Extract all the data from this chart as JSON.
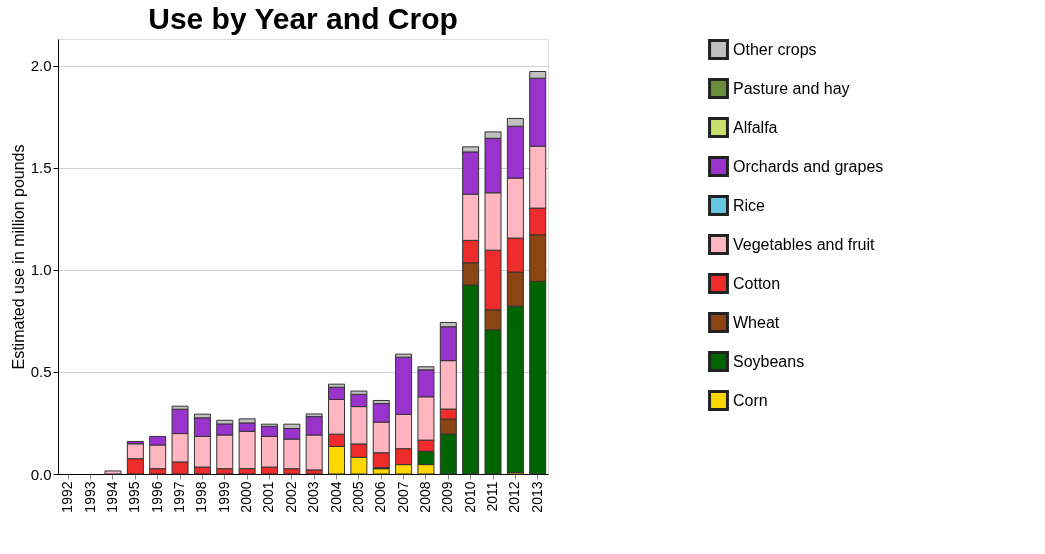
{
  "chart_data": {
    "type": "bar",
    "title": "Use by Year and Crop",
    "ylabel": "Estimated use in million pounds",
    "categories": [
      "1992",
      "1993",
      "1994",
      "1995",
      "1996",
      "1997",
      "1998",
      "1999",
      "2000",
      "2001",
      "2002",
      "2003",
      "2004",
      "2005",
      "2006",
      "2007",
      "2008",
      "2009",
      "2010",
      "2011",
      "2012",
      "2013"
    ],
    "stacked": true,
    "legend": "right",
    "grid": "y",
    "ylim": [
      0,
      2.13
    ],
    "yticks": [
      {
        "value": 0,
        "label": "0.0"
      },
      {
        "value": 0.5,
        "label": "0.5"
      },
      {
        "value": 1,
        "label": "1.0"
      },
      {
        "value": 1.5,
        "label": "1.5"
      },
      {
        "value": 2,
        "label": "2.0"
      }
    ],
    "series": [
      {
        "name": "Corn",
        "color": "#ffd700",
        "values": [
          null,
          null,
          null,
          null,
          null,
          null,
          null,
          null,
          null,
          null,
          null,
          null,
          0.135,
          0.082,
          0.026,
          0.046,
          0.046,
          null,
          null,
          null,
          0.007,
          null
        ]
      },
      {
        "name": "Soybeans",
        "color": "#006400",
        "values": [
          null,
          null,
          null,
          null,
          null,
          null,
          null,
          null,
          null,
          null,
          null,
          null,
          null,
          null,
          0.005,
          null,
          0.065,
          0.196,
          0.925,
          0.706,
          0.815,
          0.943
        ]
      },
      {
        "name": "Wheat",
        "color": "#8b4513",
        "values": [
          null,
          null,
          null,
          null,
          null,
          null,
          null,
          null,
          null,
          null,
          null,
          null,
          null,
          null,
          null,
          null,
          null,
          0.073,
          0.109,
          0.098,
          0.167,
          0.228
        ]
      },
      {
        "name": "Cotton",
        "color": "#ee2c2c",
        "values": [
          null,
          null,
          null,
          0.075,
          0.026,
          0.059,
          0.034,
          0.026,
          0.026,
          0.034,
          0.026,
          0.02,
          0.06,
          0.065,
          0.073,
          0.078,
          0.055,
          0.049,
          0.11,
          0.292,
          0.166,
          0.131
        ]
      },
      {
        "name": "Vegetables and fruit",
        "color": "#ffb6c1",
        "values": [
          null,
          null,
          0.015,
          0.073,
          0.116,
          0.139,
          0.15,
          0.165,
          0.183,
          0.15,
          0.145,
          0.171,
          0.17,
          0.183,
          0.15,
          0.168,
          0.212,
          0.237,
          0.226,
          0.281,
          0.294,
          0.303
        ]
      },
      {
        "name": "Rice",
        "color": "#66c8e0",
        "values": [
          null,
          null,
          null,
          null,
          null,
          null,
          null,
          null,
          null,
          null,
          null,
          null,
          null,
          null,
          null,
          null,
          null,
          null,
          null,
          null,
          null,
          null
        ]
      },
      {
        "name": "Orchards and grapes",
        "color": "#9933cc",
        "values": [
          null,
          null,
          null,
          0.011,
          0.042,
          0.119,
          0.091,
          0.054,
          0.041,
          0.049,
          0.052,
          0.09,
          0.06,
          0.06,
          0.091,
          0.28,
          0.132,
          0.166,
          0.207,
          0.267,
          0.254,
          0.333
        ]
      },
      {
        "name": "Alfalfa",
        "color": "#c8e06a",
        "values": [
          null,
          null,
          null,
          null,
          null,
          null,
          null,
          null,
          null,
          null,
          null,
          null,
          null,
          null,
          null,
          null,
          null,
          null,
          null,
          null,
          null,
          null
        ]
      },
      {
        "name": "Pasture and hay",
        "color": "#6b8e3a",
        "values": [
          null,
          null,
          null,
          null,
          null,
          null,
          null,
          null,
          null,
          null,
          null,
          null,
          null,
          null,
          null,
          null,
          null,
          null,
          null,
          null,
          null,
          null
        ]
      },
      {
        "name": "Other crops",
        "color": "#c0c0c0",
        "values": [
          null,
          null,
          null,
          null,
          null,
          0.015,
          0.018,
          0.018,
          0.02,
          0.011,
          0.021,
          0.013,
          0.015,
          0.016,
          0.015,
          0.015,
          0.015,
          0.021,
          0.025,
          0.031,
          0.038,
          0.033
        ]
      }
    ]
  }
}
